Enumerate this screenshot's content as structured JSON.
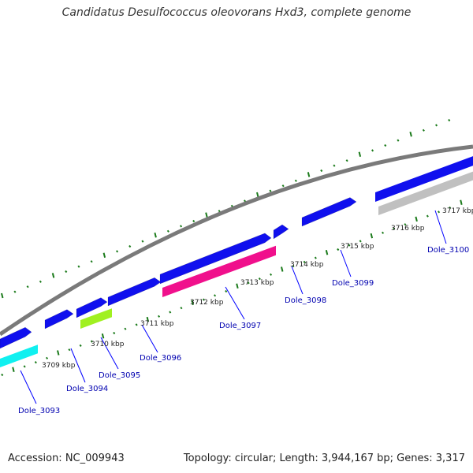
{
  "title": "Candidatus Desulfococcus oleovorans Hxd3, complete genome",
  "footer": {
    "accession": "Accession: NC_009943",
    "topology": "Topology: circular; Length: 3,944,167 bp; Genes: 3,317"
  },
  "colors": {
    "backbone": "#808080",
    "tick": "#1a7a1a",
    "cds_forward": "#1010ee",
    "cds_highlight_cyan": "#10f0f0",
    "cds_highlight_green": "#a0f020",
    "cds_highlight_pink": "#f0108c",
    "cds_gray": "#c0c0c0",
    "label": "#0000b0",
    "leader": "#0000ff"
  },
  "kbp_labels": [
    "3709 kbp",
    "3710 kbp",
    "3711 kbp",
    "3712 kbp",
    "3713 kbp",
    "3714 kbp",
    "3715 kbp",
    "3716 kbp",
    "3717 kbp"
  ],
  "gene_labels": [
    "Dole_3093",
    "Dole_3094",
    "Dole_3095",
    "Dole_3096",
    "Dole_3097",
    "Dole_3098",
    "Dole_3099",
    "Dole_3100"
  ]
}
